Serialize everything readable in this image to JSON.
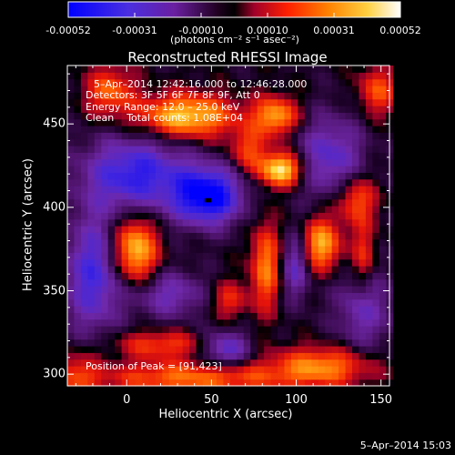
{
  "colorbar": {
    "tick_labels": [
      "-0.00052",
      "-0.00031",
      "-0.00010",
      "0.00010",
      "0.00031",
      "0.00052"
    ],
    "units": "(photons cm⁻² s⁻¹ asec⁻²)",
    "colors": [
      "#0000ff",
      "#5a2bd6",
      "#6a23a8",
      "#000000",
      "#c8003c",
      "#ff3000",
      "#ff9000",
      "#ffe040",
      "#ffffff"
    ]
  },
  "title": "Reconstructed RHESSI Image",
  "info": {
    "time_range": "5–Apr–2014 12:42:16.000 to 12:46:28.000",
    "detectors": "Detectors: 3F 5F 6F 7F 8F 9F, Att 0",
    "energy": "Energy Range: 12.0 – 25.0 keV",
    "clean": "Clean    Total counts: 1.08E+04",
    "peak": "Position of Peak = [91,423]"
  },
  "xlabel": "Heliocentric X (arcsec)",
  "ylabel": "Heliocentric Y (arcsec)",
  "footer_date": "5–Apr–2014 15:03",
  "chart_data": {
    "type": "heatmap",
    "title": "Reconstructed RHESSI Image",
    "xlabel": "Heliocentric X (arcsec)",
    "ylabel": "Heliocentric Y (arcsec)",
    "xlim": [
      -35,
      155
    ],
    "ylim": [
      293,
      485
    ],
    "x_ticks": [
      0,
      50,
      100,
      150
    ],
    "y_ticks": [
      300,
      350,
      400,
      450
    ],
    "x_tick_labels": [
      "0",
      "50",
      "100",
      "150"
    ],
    "y_tick_labels": [
      "300",
      "350",
      "400",
      "450"
    ],
    "zlim": [
      -0.00052,
      0.00052
    ],
    "peak": [
      91,
      423
    ],
    "blobs": [
      {
        "x": 48,
        "y": 407,
        "sx": 14,
        "sy": 12,
        "a": -1.0
      },
      {
        "x": 58,
        "y": 315,
        "sx": 10,
        "sy": 8,
        "a": -0.6
      },
      {
        "x": 5,
        "y": 420,
        "sx": 22,
        "sy": 16,
        "a": -0.75
      },
      {
        "x": -20,
        "y": 360,
        "sx": 12,
        "sy": 25,
        "a": -0.65
      },
      {
        "x": 25,
        "y": 348,
        "sx": 16,
        "sy": 10,
        "a": -0.45
      },
      {
        "x": 120,
        "y": 430,
        "sx": 14,
        "sy": 18,
        "a": -0.55
      },
      {
        "x": 140,
        "y": 340,
        "sx": 12,
        "sy": 18,
        "a": -0.45
      },
      {
        "x": 100,
        "y": 365,
        "sx": 6,
        "sy": 14,
        "a": -0.5
      },
      {
        "x": 91,
        "y": 423,
        "sx": 9,
        "sy": 7,
        "a": 1.0
      },
      {
        "x": 35,
        "y": 455,
        "sx": 20,
        "sy": 9,
        "a": 0.9
      },
      {
        "x": 88,
        "y": 455,
        "sx": 9,
        "sy": 8,
        "a": 0.75
      },
      {
        "x": 115,
        "y": 378,
        "sx": 8,
        "sy": 11,
        "a": 0.8
      },
      {
        "x": 5,
        "y": 375,
        "sx": 9,
        "sy": 14,
        "a": 0.9
      },
      {
        "x": 82,
        "y": 365,
        "sx": 6,
        "sy": 18,
        "a": 0.65
      },
      {
        "x": -10,
        "y": 470,
        "sx": 10,
        "sy": 10,
        "a": 0.55
      },
      {
        "x": 135,
        "y": 405,
        "sx": 9,
        "sy": 10,
        "a": 0.55
      },
      {
        "x": 40,
        "y": 298,
        "sx": 40,
        "sy": 7,
        "a": 0.6
      },
      {
        "x": 20,
        "y": 318,
        "sx": 20,
        "sy": 6,
        "a": 0.45
      },
      {
        "x": 115,
        "y": 305,
        "sx": 20,
        "sy": 8,
        "a": 0.65
      },
      {
        "x": 148,
        "y": 470,
        "sx": 8,
        "sy": 10,
        "a": 0.5
      },
      {
        "x": 72,
        "y": 435,
        "sx": 8,
        "sy": 9,
        "a": 0.45
      },
      {
        "x": 140,
        "y": 370,
        "sx": 5,
        "sy": 15,
        "a": 0.45
      },
      {
        "x": -30,
        "y": 300,
        "sx": 10,
        "sy": 10,
        "a": 0.4
      },
      {
        "x": 60,
        "y": 345,
        "sx": 8,
        "sy": 8,
        "a": 0.4
      }
    ]
  }
}
